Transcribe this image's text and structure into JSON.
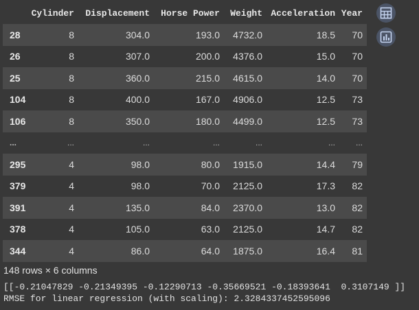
{
  "table": {
    "index_header": "",
    "columns": [
      "Cylinder",
      "Displacement",
      "Horse Power",
      "Weight",
      "Acceleration",
      "Year"
    ],
    "rows": [
      {
        "index": "28",
        "cells": [
          "8",
          "304.0",
          "193.0",
          "4732.0",
          "18.5",
          "70"
        ]
      },
      {
        "index": "26",
        "cells": [
          "8",
          "307.0",
          "200.0",
          "4376.0",
          "15.0",
          "70"
        ]
      },
      {
        "index": "25",
        "cells": [
          "8",
          "360.0",
          "215.0",
          "4615.0",
          "14.0",
          "70"
        ]
      },
      {
        "index": "104",
        "cells": [
          "8",
          "400.0",
          "167.0",
          "4906.0",
          "12.5",
          "73"
        ]
      },
      {
        "index": "106",
        "cells": [
          "8",
          "350.0",
          "180.0",
          "4499.0",
          "12.5",
          "73"
        ]
      },
      {
        "index": "...",
        "cells": [
          "...",
          "...",
          "...",
          "...",
          "...",
          "..."
        ]
      },
      {
        "index": "295",
        "cells": [
          "4",
          "98.0",
          "80.0",
          "1915.0",
          "14.4",
          "79"
        ]
      },
      {
        "index": "379",
        "cells": [
          "4",
          "98.0",
          "70.0",
          "2125.0",
          "17.3",
          "82"
        ]
      },
      {
        "index": "391",
        "cells": [
          "4",
          "135.0",
          "84.0",
          "2370.0",
          "13.0",
          "82"
        ]
      },
      {
        "index": "378",
        "cells": [
          "4",
          "105.0",
          "63.0",
          "2125.0",
          "14.7",
          "82"
        ]
      },
      {
        "index": "344",
        "cells": [
          "4",
          "86.0",
          "64.0",
          "1875.0",
          "16.4",
          "81"
        ]
      }
    ],
    "summary": "148 rows × 6 columns"
  },
  "side_buttons": [
    {
      "icon": "table-icon"
    },
    {
      "icon": "bar-chart-icon"
    }
  ],
  "output_lines": [
    "[[-0.21047829 -0.21349395 -0.12290713 -0.35669521 -0.18393641  0.3107149 ]]",
    "RMSE for linear regression (with scaling): 2.3284337452595096"
  ],
  "colors": {
    "background": "#383838",
    "row_stripe": "#4a4a4a",
    "button_bg": "#4b5466",
    "icon": "#c5d5f0"
  }
}
